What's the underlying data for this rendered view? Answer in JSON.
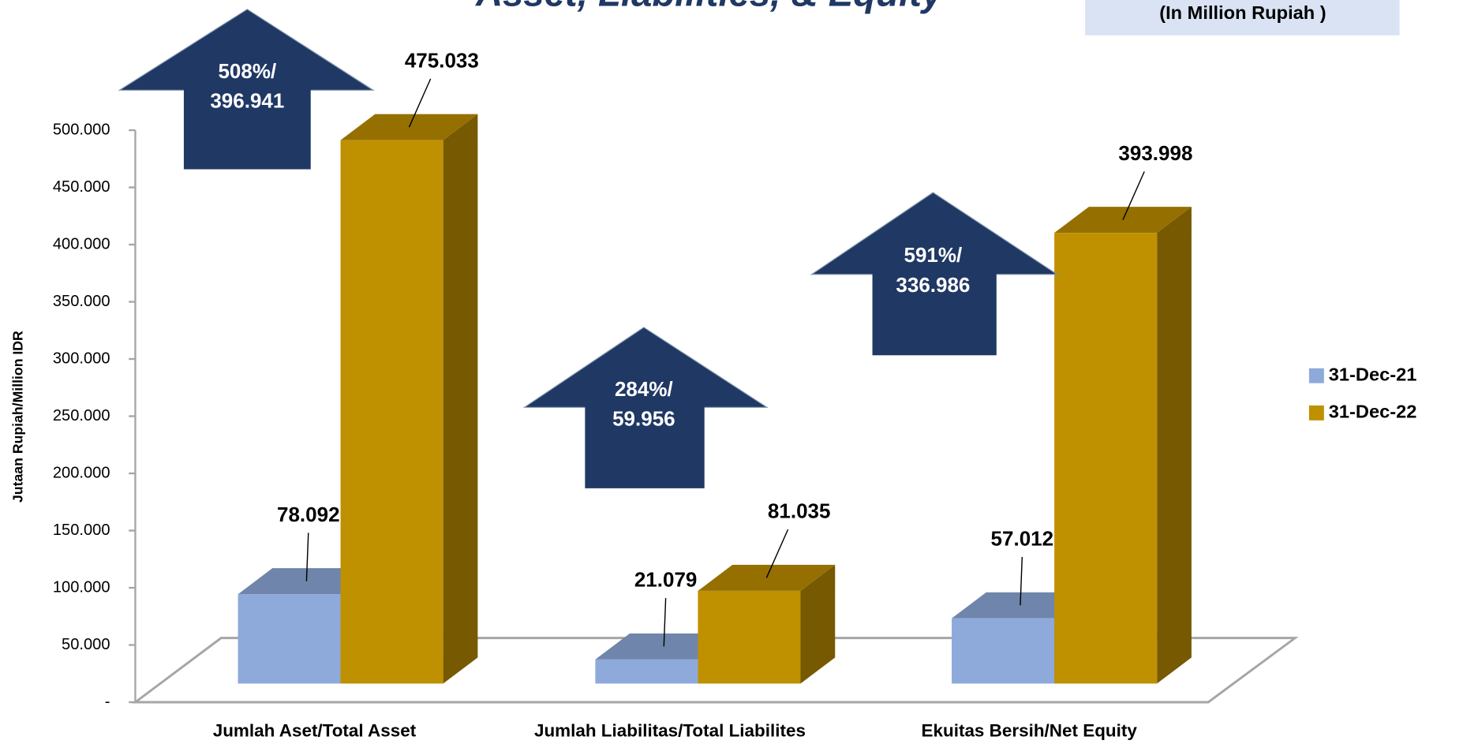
{
  "chart_data": {
    "type": "bar3d",
    "title": "Asset, Liabilities, & Equity",
    "subtitle": "(In Million Rupiah )",
    "y_label": "Jutaan Rupiah/Million IDR",
    "categories": [
      "Jumlah Aset/Total Asset",
      "Jumlah Liabilitas/Total Liabilites",
      "Ekuitas Bersih/Net Equity"
    ],
    "series": [
      {
        "name": "31-Dec-21",
        "color": "#8eaadb",
        "values": [
          78092,
          21079,
          57012
        ],
        "value_labels": [
          "78.092",
          "21.079",
          "57.012"
        ]
      },
      {
        "name": "31-Dec-22",
        "color": "#bf9000",
        "values": [
          475033,
          81035,
          393998
        ],
        "value_labels": [
          "475.033",
          "81.035",
          "393.998"
        ]
      }
    ],
    "ylim": [
      0,
      500000
    ],
    "yticks": [
      {
        "value": 0,
        "label": "-"
      },
      {
        "value": 50000,
        "label": "50.000"
      },
      {
        "value": 100000,
        "label": "100.000"
      },
      {
        "value": 150000,
        "label": "150.000"
      },
      {
        "value": 200000,
        "label": "200.000"
      },
      {
        "value": 250000,
        "label": "250.000"
      },
      {
        "value": 300000,
        "label": "300.000"
      },
      {
        "value": 350000,
        "label": "350.000"
      },
      {
        "value": 400000,
        "label": "400.000"
      },
      {
        "value": 450000,
        "label": "450.000"
      },
      {
        "value": 500000,
        "label": "500.000"
      }
    ],
    "annotations": [
      {
        "lines": [
          "508%/",
          "396.941"
        ]
      },
      {
        "lines": [
          "284%/",
          "59.956"
        ]
      },
      {
        "lines": [
          "591%/",
          "336.986"
        ]
      }
    ],
    "annotation_color": "#203864",
    "legend": "right",
    "grid": false
  }
}
